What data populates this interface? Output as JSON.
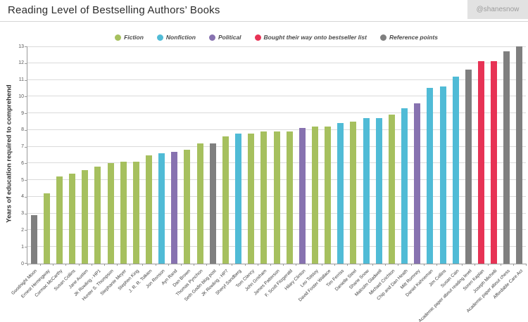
{
  "header": {
    "title": "Reading Level of Bestselling Authors’ Books",
    "badge": "@shanesnow"
  },
  "chart_data": {
    "type": "bar",
    "title": "Reading Level of Bestselling Authors’ Books",
    "xlabel": "",
    "ylabel": "Years of education required to comprehend",
    "ylim": [
      0,
      13
    ],
    "yticks": [
      0,
      1,
      2,
      3,
      4,
      5,
      6,
      7,
      8,
      9,
      10,
      11,
      12,
      13
    ],
    "grid": true,
    "legend_position": "top",
    "legend": [
      {
        "key": "fiction",
        "label": "Fiction",
        "color": "#a6c05e"
      },
      {
        "key": "nonfiction",
        "label": "Nonfiction",
        "color": "#50bbd6"
      },
      {
        "key": "political",
        "label": "Political",
        "color": "#8772b0"
      },
      {
        "key": "bought",
        "label": "Bought their way onto bestseller list",
        "color": "#e73355"
      },
      {
        "key": "reference",
        "label": "Reference points",
        "color": "#7f7f7f"
      }
    ],
    "bars": [
      {
        "label": "Goodnight Moon",
        "value": 2.9,
        "category": "reference"
      },
      {
        "label": "Ernest Hemingway",
        "value": 4.2,
        "category": "fiction"
      },
      {
        "label": "Cormac McCarthy",
        "value": 5.2,
        "category": "fiction"
      },
      {
        "label": "Susan Collins",
        "value": 5.4,
        "category": "fiction"
      },
      {
        "label": "Jane Austen",
        "value": 5.6,
        "category": "fiction"
      },
      {
        "label": "JK Rowling - HP1",
        "value": 5.8,
        "category": "fiction"
      },
      {
        "label": "Hunter S. Thompson",
        "value": 6.0,
        "category": "fiction"
      },
      {
        "label": "Stephanie Meyer",
        "value": 6.1,
        "category": "fiction"
      },
      {
        "label": "Stephen King",
        "value": 6.1,
        "category": "fiction"
      },
      {
        "label": "J. R. R. Tolkien",
        "value": 6.5,
        "category": "fiction"
      },
      {
        "label": "Jon Ronson",
        "value": 6.6,
        "category": "nonfiction"
      },
      {
        "label": "Ayn Rand",
        "value": 6.7,
        "category": "political"
      },
      {
        "label": "Dan Brown",
        "value": 6.8,
        "category": "fiction"
      },
      {
        "label": "Thomas Pynchon",
        "value": 7.2,
        "category": "fiction"
      },
      {
        "label": "Seth Godin blog post",
        "value": 7.2,
        "category": "reference"
      },
      {
        "label": "JK Rowling - HP7",
        "value": 7.6,
        "category": "fiction"
      },
      {
        "label": "Sheryl Sandberg",
        "value": 7.8,
        "category": "nonfiction"
      },
      {
        "label": "Tom Clancy",
        "value": 7.8,
        "category": "fiction"
      },
      {
        "label": "John Grisham",
        "value": 7.9,
        "category": "fiction"
      },
      {
        "label": "James Patterson",
        "value": 7.9,
        "category": "fiction"
      },
      {
        "label": "F. Scott Fitzgerald",
        "value": 7.9,
        "category": "fiction"
      },
      {
        "label": "Hilary Clinton",
        "value": 8.1,
        "category": "political"
      },
      {
        "label": "Leo Tolstoy",
        "value": 8.2,
        "category": "fiction"
      },
      {
        "label": "David Foster Wallace",
        "value": 8.2,
        "category": "fiction"
      },
      {
        "label": "Tim Ferriss",
        "value": 8.4,
        "category": "nonfiction"
      },
      {
        "label": "Danielle Steel",
        "value": 8.5,
        "category": "fiction"
      },
      {
        "label": "Shane Snow",
        "value": 8.7,
        "category": "nonfiction"
      },
      {
        "label": "Malcolm Gladwell",
        "value": 8.7,
        "category": "nonfiction"
      },
      {
        "label": "Michael Crichton",
        "value": 8.9,
        "category": "fiction"
      },
      {
        "label": "Chip and Dan Heath",
        "value": 9.3,
        "category": "nonfiction"
      },
      {
        "label": "Mitt Romney",
        "value": 9.6,
        "category": "political"
      },
      {
        "label": "Daniel Kahneman",
        "value": 10.5,
        "category": "nonfiction"
      },
      {
        "label": "Jim Collins",
        "value": 10.6,
        "category": "nonfiction"
      },
      {
        "label": "Susan Cain",
        "value": 11.2,
        "category": "nonfiction"
      },
      {
        "label": "Academic paper about reading level",
        "value": 11.6,
        "category": "reference"
      },
      {
        "label": "Soren Kaplan",
        "value": 12.1,
        "category": "bought"
      },
      {
        "label": "Joseph Michelli",
        "value": 12.1,
        "category": "bought"
      },
      {
        "label": "Academic paper about chess",
        "value": 12.7,
        "category": "reference"
      },
      {
        "label": "Affordable Care Act",
        "value": 13.0,
        "category": "reference"
      }
    ]
  }
}
